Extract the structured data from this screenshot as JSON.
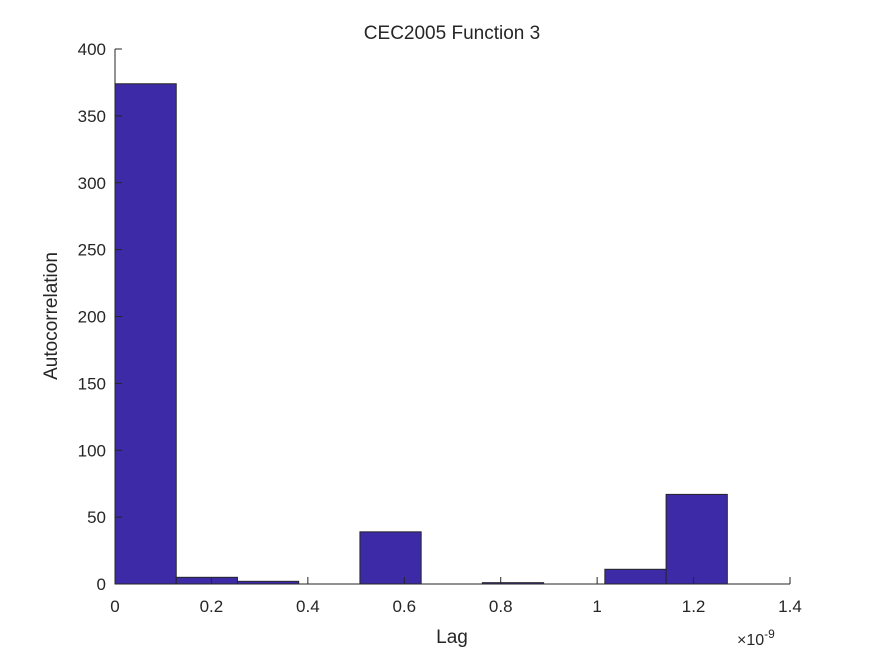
{
  "chart_data": {
    "type": "bar",
    "title": "CEC2005 Function 3",
    "xlabel": "Lag",
    "ylabel": "Autocorrelation",
    "x_exponent_label": "×10",
    "x_exponent_power": "-9",
    "xlim": [
      0,
      1.4
    ],
    "ylim": [
      0,
      400
    ],
    "x_ticks": [
      0,
      0.2,
      0.4,
      0.6,
      0.8,
      1,
      1.2,
      1.4
    ],
    "y_ticks": [
      0,
      50,
      100,
      150,
      200,
      250,
      300,
      350,
      400
    ],
    "bin_edges": [
      0,
      0.127,
      0.254,
      0.381,
      0.508,
      0.635,
      0.762,
      0.889,
      1.016,
      1.143,
      1.27
    ],
    "values": [
      374,
      5,
      2,
      0,
      39,
      0,
      1,
      0,
      11,
      67
    ],
    "bar_color": "#3d2aa6",
    "bar_edge_color": "#262626",
    "grid": false
  }
}
